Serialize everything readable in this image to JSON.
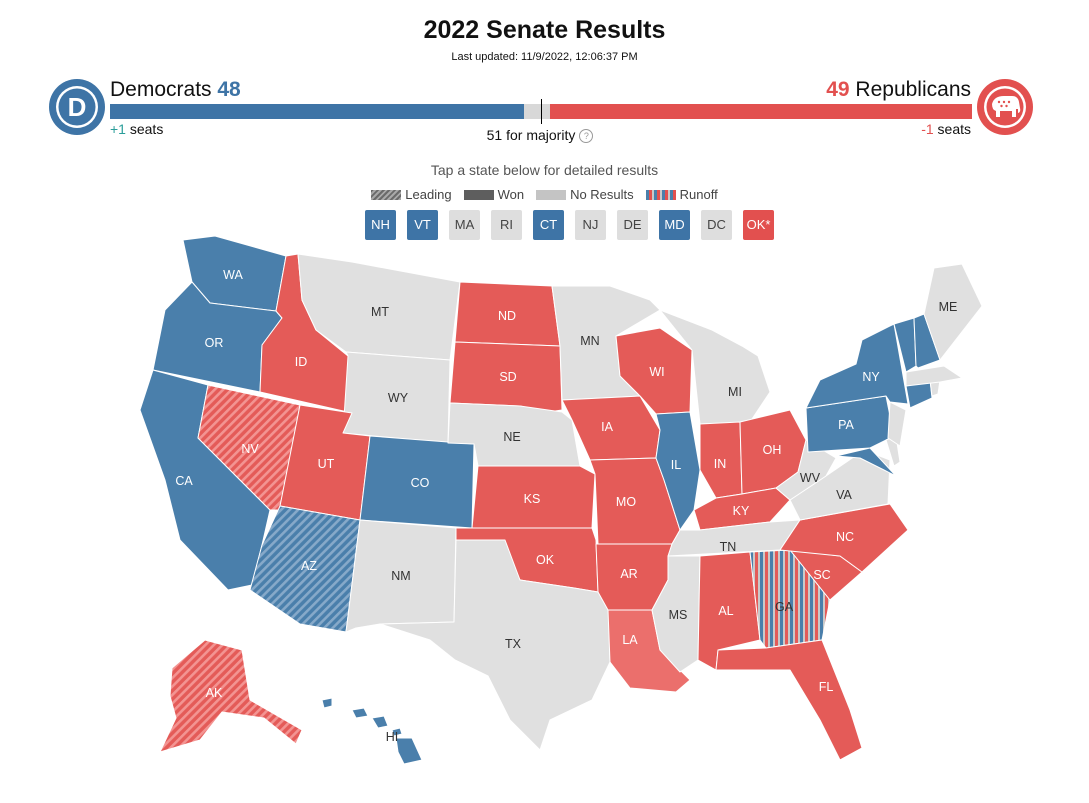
{
  "header": {
    "title": "2022 Senate Results",
    "last_updated": "Last updated: 11/9/2022, 12:06:37 PM"
  },
  "democrats": {
    "name": "Democrats",
    "seats": "48",
    "change_value": "+1",
    "change_label": "seats",
    "color": "#3e74a6",
    "logo_letter": "D"
  },
  "republicans": {
    "name": "Republicans",
    "seats": "49",
    "change_value": "-1",
    "change_label": "seats",
    "color": "#e2504f"
  },
  "majority": {
    "label": "51 for majority",
    "help_glyph": "?"
  },
  "instructions": "Tap a state below for detailed results",
  "legend": {
    "leading": "Leading",
    "won": "Won",
    "no_results": "No Results",
    "runoff": "Runoff"
  },
  "small_states": [
    {
      "abbr": "NH",
      "status": "dem"
    },
    {
      "abbr": "VT",
      "status": "dem"
    },
    {
      "abbr": "MA",
      "status": "none"
    },
    {
      "abbr": "RI",
      "status": "none"
    },
    {
      "abbr": "CT",
      "status": "dem"
    },
    {
      "abbr": "NJ",
      "status": "none"
    },
    {
      "abbr": "DE",
      "status": "none"
    },
    {
      "abbr": "MD",
      "status": "dem"
    },
    {
      "abbr": "DC",
      "status": "none"
    },
    {
      "abbr": "OK*",
      "status": "rep"
    }
  ],
  "map_labels": {
    "WA": "WA",
    "OR": "OR",
    "CA": "CA",
    "ID": "ID",
    "NV": "NV",
    "MT": "MT",
    "WY": "WY",
    "UT": "UT",
    "AZ": "AZ",
    "CO": "CO",
    "NM": "NM",
    "ND": "ND",
    "SD": "SD",
    "NE": "NE",
    "KS": "KS",
    "OK": "OK",
    "TX": "TX",
    "MN": "MN",
    "IA": "IA",
    "MO": "MO",
    "AR": "AR",
    "LA": "LA",
    "WI": "WI",
    "IL": "IL",
    "MI": "MI",
    "IN": "IN",
    "OH": "OH",
    "KY": "KY",
    "TN": "TN",
    "MS": "MS",
    "AL": "AL",
    "GA": "GA",
    "FL": "FL",
    "SC": "SC",
    "NC": "NC",
    "VA": "VA",
    "WV": "WV",
    "PA": "PA",
    "NY": "NY",
    "ME": "ME",
    "AK": "AK",
    "HI": "HI"
  },
  "colors": {
    "dem_won": "#4a7fab",
    "rep_won": "#e45b58",
    "rep_light": "#eb6f6c",
    "no_results": "#e0e0e0"
  }
}
